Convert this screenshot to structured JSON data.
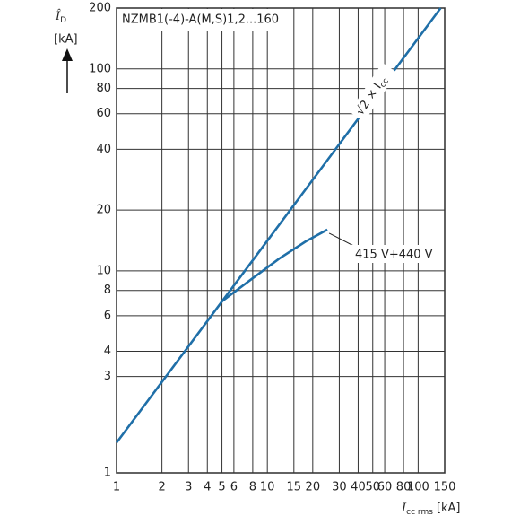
{
  "chart_data": {
    "type": "line",
    "title": "NZMB1(-4)-A(M,S)1,2...160",
    "xlabel": {
      "symbol": "I",
      "subscript": "cc rms",
      "unit": "[kA]"
    },
    "ylabel": {
      "symbol": "Î",
      "subscript": "D",
      "unit": "[kA]"
    },
    "xscale": "log",
    "yscale": "log",
    "grid": true,
    "xlim": [
      1,
      150
    ],
    "ylim": [
      1,
      200
    ],
    "xticks": [
      1,
      2,
      3,
      4,
      5,
      6,
      8,
      10,
      15,
      20,
      30,
      40,
      50,
      60,
      80,
      100,
      150
    ],
    "yticks": [
      1,
      3,
      4,
      6,
      8,
      10,
      20,
      40,
      60,
      80,
      100,
      200
    ],
    "series": [
      {
        "name": "√2 × I",
        "subscript": "cc",
        "color": "#1f6fa8",
        "x": [
          1,
          10,
          141
        ],
        "values": [
          1.41,
          14.1,
          200
        ]
      },
      {
        "name": "415 V+440 V",
        "color": "#1f6fa8",
        "x": [
          5,
          8,
          12,
          18,
          25
        ],
        "values": [
          7.07,
          9.2,
          11.5,
          14,
          16
        ]
      }
    ]
  }
}
